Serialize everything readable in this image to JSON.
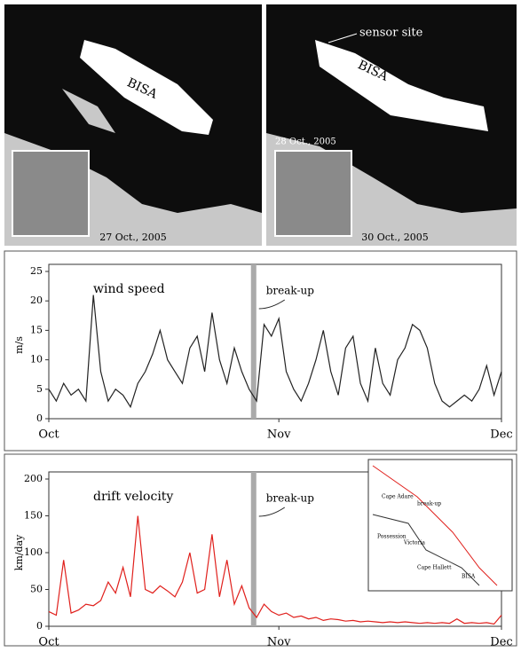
{
  "images": {
    "left": {
      "label": "BISA",
      "date": "27 Oct., 2005"
    },
    "right": {
      "label": "BISA",
      "annotation": "sensor site",
      "inset_date": "28 Oct., 2005",
      "date": "30 Oct., 2005"
    }
  },
  "map": {
    "labels": [
      "Cape Adare",
      "break-up",
      "Possession",
      "Victoria",
      "Cape Hallett",
      "BISA"
    ]
  },
  "chart_data": [
    {
      "type": "line",
      "title": "wind speed",
      "y_label": "m/s",
      "categories": [
        "Oct",
        null,
        null,
        null,
        null,
        null,
        null,
        null,
        null,
        null,
        null,
        null,
        null,
        null,
        null,
        null,
        null,
        null,
        null,
        null,
        null,
        null,
        null,
        null,
        null,
        null,
        null,
        null,
        null,
        null,
        null,
        "Nov",
        null,
        null,
        null,
        null,
        null,
        null,
        null,
        null,
        null,
        null,
        null,
        null,
        null,
        null,
        null,
        null,
        null,
        null,
        null,
        null,
        null,
        null,
        null,
        null,
        null,
        null,
        null,
        null,
        null,
        "Dec"
      ],
      "series": [
        {
          "name": "wind speed",
          "color": "#222222",
          "values": [
            5,
            3,
            6,
            4,
            5,
            3,
            21,
            8,
            3,
            5,
            4,
            2,
            6,
            8,
            11,
            15,
            10,
            8,
            6,
            12,
            14,
            8,
            18,
            10,
            6,
            12,
            8,
            5,
            3,
            16,
            14,
            17,
            8,
            5,
            3,
            6,
            10,
            15,
            8,
            4,
            12,
            14,
            6,
            3,
            12,
            6,
            4,
            10,
            12,
            16,
            15,
            12,
            6,
            3,
            2,
            3,
            4,
            3,
            5,
            9,
            4,
            8
          ]
        }
      ],
      "ylim": [
        0,
        25
      ],
      "yticks": [
        0,
        5,
        10,
        15,
        20,
        25
      ],
      "event": {
        "label": "break-up",
        "x": 27.6
      }
    },
    {
      "type": "line",
      "title": "drift velocity",
      "y_label": "km/day",
      "categories": [
        "Oct",
        null,
        null,
        null,
        null,
        null,
        null,
        null,
        null,
        null,
        null,
        null,
        null,
        null,
        null,
        null,
        null,
        null,
        null,
        null,
        null,
        null,
        null,
        null,
        null,
        null,
        null,
        null,
        null,
        null,
        null,
        "Nov",
        null,
        null,
        null,
        null,
        null,
        null,
        null,
        null,
        null,
        null,
        null,
        null,
        null,
        null,
        null,
        null,
        null,
        null,
        null,
        null,
        null,
        null,
        null,
        null,
        null,
        null,
        null,
        null,
        null,
        "Dec"
      ],
      "series": [
        {
          "name": "drift velocity",
          "color": "#e0201c",
          "values": [
            20,
            15,
            90,
            18,
            22,
            30,
            28,
            35,
            60,
            45,
            80,
            40,
            150,
            50,
            45,
            55,
            48,
            40,
            60,
            100,
            45,
            50,
            125,
            40,
            90,
            30,
            55,
            25,
            12,
            30,
            20,
            15,
            18,
            12,
            14,
            10,
            12,
            8,
            10,
            9,
            7,
            8,
            6,
            7,
            6,
            5,
            6,
            5,
            6,
            5,
            4,
            5,
            4,
            5,
            4,
            10,
            4,
            5,
            4,
            5,
            3,
            15
          ]
        }
      ],
      "ylim": [
        0,
        200
      ],
      "yticks": [
        0,
        50,
        100,
        150,
        200
      ],
      "event": {
        "label": "break-up",
        "x": 27.6
      }
    }
  ]
}
